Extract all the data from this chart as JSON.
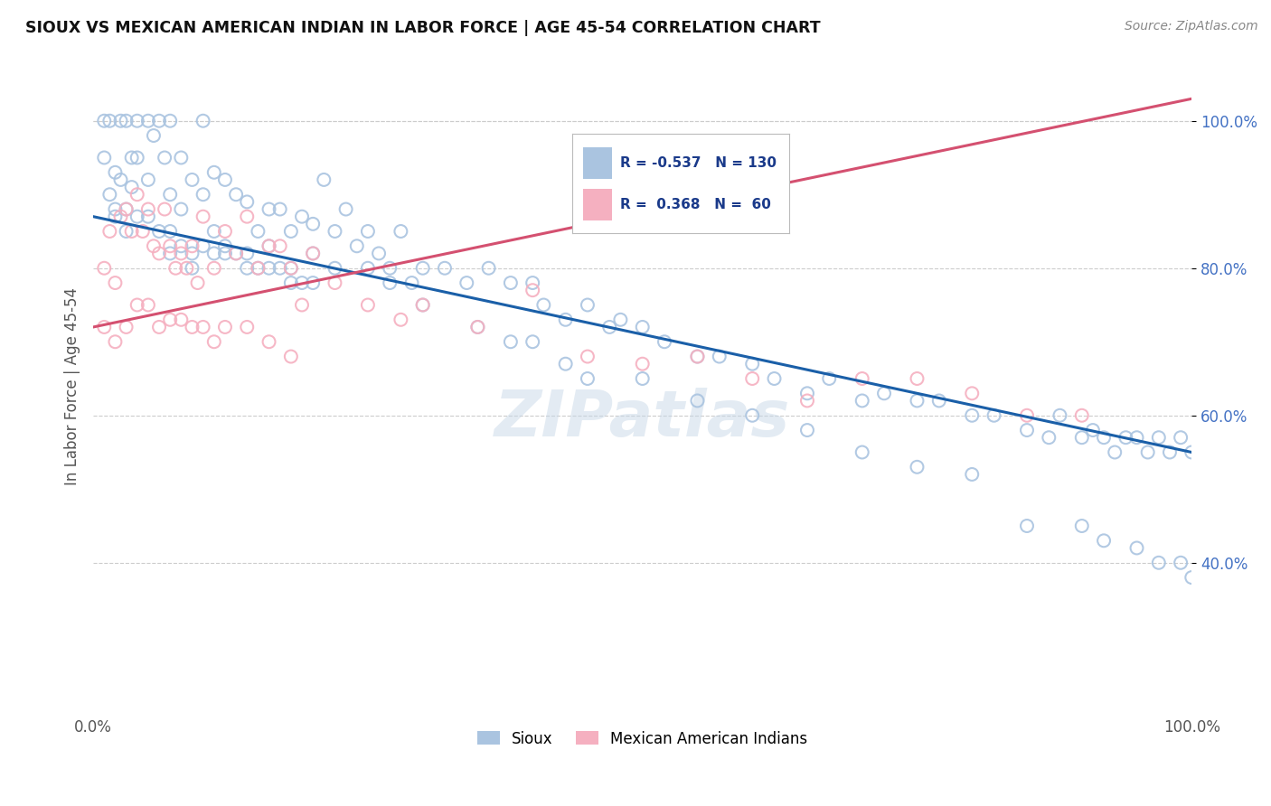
{
  "title": "SIOUX VS MEXICAN AMERICAN INDIAN IN LABOR FORCE | AGE 45-54 CORRELATION CHART",
  "source": "Source: ZipAtlas.com",
  "ylabel": "In Labor Force | Age 45-54",
  "R_sioux": -0.537,
  "N_sioux": 130,
  "R_mai": 0.368,
  "N_mai": 60,
  "sioux_color": "#aac4e0",
  "mai_color": "#f5b0c0",
  "sioux_line_color": "#1a5fa8",
  "mai_line_color": "#d45070",
  "background": "#ffffff",
  "sioux_line_x0": 0,
  "sioux_line_y0": 87.0,
  "sioux_line_x1": 100,
  "sioux_line_y1": 55.0,
  "mai_line_x0": 0,
  "mai_line_y0": 72.0,
  "mai_line_x1": 50,
  "mai_line_y1": 87.5,
  "xlim": [
    0,
    100
  ],
  "ylim": [
    20,
    108
  ],
  "yticks": [
    40,
    60,
    80,
    100
  ],
  "ytick_labels": [
    "40.0%",
    "60.0%",
    "80.0%",
    "100.0%"
  ],
  "xtick_labels_left": "0.0%",
  "xtick_labels_right": "100.0%",
  "legend_R_text1": "R = -0.537   N = 130",
  "legend_R_text2": "R =  0.368   N =  60",
  "watermark": "ZIPatlas",
  "seed": 42,
  "sioux_x": [
    1.0,
    1.0,
    1.5,
    1.5,
    2.0,
    2.0,
    2.5,
    2.5,
    3.0,
    3.0,
    3.5,
    3.5,
    4.0,
    4.0,
    5.0,
    5.0,
    5.5,
    6.0,
    6.5,
    7.0,
    7.0,
    8.0,
    8.0,
    9.0,
    10.0,
    10.0,
    11.0,
    12.0,
    13.0,
    14.0,
    15.0,
    16.0,
    17.0,
    18.0,
    19.0,
    20.0,
    21.0,
    22.0,
    23.0,
    24.0,
    25.0,
    26.0,
    27.0,
    28.0,
    29.0,
    30.0,
    32.0,
    34.0,
    36.0,
    38.0,
    40.0,
    41.0,
    43.0,
    45.0,
    47.0,
    48.0,
    50.0,
    52.0,
    55.0,
    57.0,
    60.0,
    62.0,
    65.0,
    67.0,
    70.0,
    72.0,
    75.0,
    77.0,
    80.0,
    82.0,
    85.0,
    87.0,
    88.0,
    90.0,
    91.0,
    92.0,
    93.0,
    94.0,
    95.0,
    96.0,
    97.0,
    98.0,
    99.0,
    100.0,
    7.0,
    9.0,
    11.0,
    12.0,
    14.0,
    16.0,
    18.0,
    20.0,
    22.0,
    25.0,
    27.0,
    30.0,
    35.0,
    38.0,
    40.0,
    43.0,
    45.0,
    50.0,
    55.0,
    60.0,
    65.0,
    70.0,
    75.0,
    80.0,
    85.0,
    90.0,
    92.0,
    95.0,
    97.0,
    99.0,
    100.0,
    2.0,
    3.0,
    4.0,
    5.0,
    6.0,
    7.0,
    8.0,
    9.0,
    10.0,
    11.0,
    12.0,
    13.0,
    14.0,
    15.0,
    16.0,
    17.0,
    18.0,
    19.0,
    20.0
  ],
  "sioux_y": [
    100.0,
    95.0,
    100.0,
    90.0,
    93.0,
    87.0,
    100.0,
    92.0,
    100.0,
    88.0,
    95.0,
    91.0,
    100.0,
    95.0,
    100.0,
    92.0,
    98.0,
    100.0,
    95.0,
    100.0,
    90.0,
    95.0,
    88.0,
    92.0,
    100.0,
    90.0,
    93.0,
    92.0,
    90.0,
    89.0,
    85.0,
    88.0,
    88.0,
    85.0,
    87.0,
    86.0,
    92.0,
    85.0,
    88.0,
    83.0,
    85.0,
    82.0,
    80.0,
    85.0,
    78.0,
    80.0,
    80.0,
    78.0,
    80.0,
    78.0,
    78.0,
    75.0,
    73.0,
    75.0,
    72.0,
    73.0,
    72.0,
    70.0,
    68.0,
    68.0,
    67.0,
    65.0,
    63.0,
    65.0,
    62.0,
    63.0,
    62.0,
    62.0,
    60.0,
    60.0,
    58.0,
    57.0,
    60.0,
    57.0,
    58.0,
    57.0,
    55.0,
    57.0,
    57.0,
    55.0,
    57.0,
    55.0,
    57.0,
    55.0,
    82.0,
    80.0,
    85.0,
    83.0,
    82.0,
    83.0,
    80.0,
    82.0,
    80.0,
    80.0,
    78.0,
    75.0,
    72.0,
    70.0,
    70.0,
    67.0,
    65.0,
    65.0,
    62.0,
    60.0,
    58.0,
    55.0,
    53.0,
    52.0,
    45.0,
    45.0,
    43.0,
    42.0,
    40.0,
    40.0,
    38.0,
    88.0,
    85.0,
    87.0,
    87.0,
    85.0,
    85.0,
    83.0,
    82.0,
    83.0,
    82.0,
    82.0,
    82.0,
    80.0,
    80.0,
    80.0,
    80.0,
    78.0,
    78.0,
    78.0
  ],
  "mai_x": [
    1.0,
    1.5,
    2.0,
    2.5,
    3.0,
    3.5,
    4.0,
    4.5,
    5.0,
    5.5,
    6.0,
    6.5,
    7.0,
    7.5,
    8.0,
    8.5,
    9.0,
    9.5,
    10.0,
    11.0,
    12.0,
    13.0,
    14.0,
    15.0,
    16.0,
    17.0,
    18.0,
    19.0,
    20.0,
    22.0,
    25.0,
    28.0,
    30.0,
    35.0,
    40.0,
    45.0,
    50.0,
    55.0,
    60.0,
    65.0,
    70.0,
    75.0,
    80.0,
    85.0,
    90.0,
    1.0,
    2.0,
    3.0,
    4.0,
    5.0,
    6.0,
    7.0,
    8.0,
    9.0,
    10.0,
    11.0,
    12.0,
    14.0,
    16.0,
    18.0
  ],
  "mai_y": [
    80.0,
    85.0,
    78.0,
    87.0,
    88.0,
    85.0,
    90.0,
    85.0,
    88.0,
    83.0,
    82.0,
    88.0,
    83.0,
    80.0,
    82.0,
    80.0,
    83.0,
    78.0,
    87.0,
    80.0,
    85.0,
    82.0,
    87.0,
    80.0,
    83.0,
    83.0,
    80.0,
    75.0,
    82.0,
    78.0,
    75.0,
    73.0,
    75.0,
    72.0,
    77.0,
    68.0,
    67.0,
    68.0,
    65.0,
    62.0,
    65.0,
    65.0,
    63.0,
    60.0,
    60.0,
    72.0,
    70.0,
    72.0,
    75.0,
    75.0,
    72.0,
    73.0,
    73.0,
    72.0,
    72.0,
    70.0,
    72.0,
    72.0,
    70.0,
    68.0
  ]
}
